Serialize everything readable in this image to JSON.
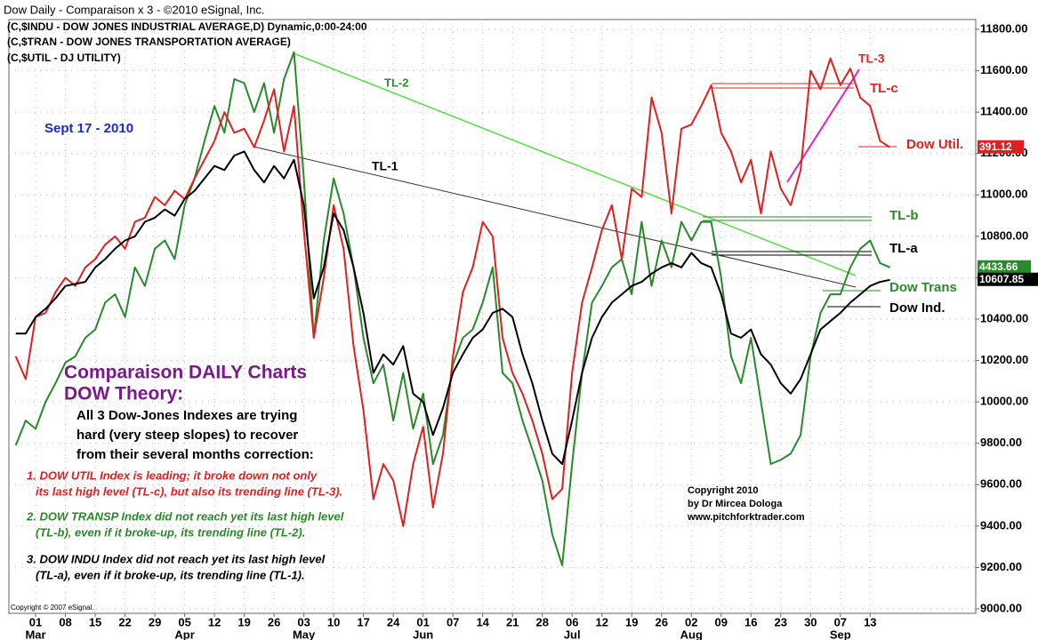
{
  "chart_data": {
    "type": "line",
    "title": "Dow Daily - Comparaison x 3 - ©2010 eSignal, Inc.",
    "header": [
      "(C,$INDU - DOW JONES INDUSTRIAL AVERAGE,D) Dynamic,0:00-24:00",
      "(C,$TRAN - DOW JONES TRANSPORTATION AVERAGE)",
      "(C,$UTIL - DJ UTILITY)"
    ],
    "categories": [
      null,
      null,
      "01",
      null,
      null,
      "08",
      null,
      null,
      "15",
      null,
      null,
      "22",
      null,
      null,
      "29",
      null,
      null,
      "05",
      null,
      null,
      "12",
      null,
      null,
      "19",
      null,
      null,
      "26",
      null,
      null,
      "03",
      null,
      null,
      "10",
      null,
      null,
      "17",
      null,
      null,
      "24",
      null,
      null,
      "01",
      null,
      null,
      "07",
      null,
      null,
      "14",
      null,
      null,
      "21",
      null,
      null,
      "28",
      null,
      null,
      "06",
      null,
      null,
      "12",
      null,
      null,
      "19",
      null,
      null,
      "26",
      null,
      null,
      "02",
      null,
      null,
      "09",
      null,
      null,
      "16",
      null,
      null,
      "23",
      null,
      null,
      "30",
      null,
      null,
      "07",
      null,
      null,
      "13",
      null,
      null
    ],
    "months": [
      null,
      null,
      "Mar",
      null,
      null,
      null,
      null,
      null,
      null,
      null,
      null,
      null,
      null,
      null,
      null,
      null,
      null,
      "Apr",
      null,
      null,
      null,
      null,
      null,
      null,
      null,
      null,
      null,
      null,
      null,
      "May",
      null,
      null,
      null,
      null,
      null,
      null,
      null,
      null,
      null,
      null,
      null,
      "Jun",
      null,
      null,
      null,
      null,
      null,
      null,
      null,
      null,
      null,
      null,
      null,
      null,
      null,
      null,
      "Jul",
      null,
      null,
      null,
      null,
      null,
      null,
      null,
      null,
      null,
      null,
      null,
      "Aug",
      null,
      null,
      null,
      null,
      null,
      null,
      null,
      null,
      null,
      null,
      null,
      null,
      null,
      null,
      "Sep",
      null,
      null,
      null,
      null,
      null
    ],
    "ylim": [
      9000,
      11800
    ],
    "yticks": [
      {
        "value": 9000,
        "label": "9000.00"
      },
      {
        "value": 9200,
        "label": "9200.00"
      },
      {
        "value": 9400,
        "label": "9400.00"
      },
      {
        "value": 9600,
        "label": "9600.00"
      },
      {
        "value": 9800,
        "label": "9800.00"
      },
      {
        "value": 10000,
        "label": "10000.00"
      },
      {
        "value": 10200,
        "label": "10200.00"
      },
      {
        "value": 10400,
        "label": "10400.00"
      },
      {
        "value": 10600,
        "label": "10600.00"
      },
      {
        "value": 10800,
        "label": "10800.00"
      },
      {
        "value": 11000,
        "label": "11000.00"
      },
      {
        "value": 11200,
        "label": "11200.00"
      },
      {
        "value": 11400,
        "label": "11400.00"
      },
      {
        "value": 11600,
        "label": "11600.00"
      },
      {
        "value": 11800,
        "label": "11800.00"
      }
    ],
    "grid": true,
    "series": [
      {
        "name": "Dow Trans",
        "color": "#2a8a2a",
        "last_label": "4433.66",
        "values": [
          9790,
          9910,
          9870,
          10000,
          10090,
          10190,
          10220,
          10310,
          10350,
          10480,
          10520,
          10410,
          10650,
          10560,
          10740,
          10780,
          10690,
          10950,
          11080,
          11260,
          11430,
          11300,
          11560,
          11540,
          11400,
          11540,
          11300,
          11560,
          11690,
          11080,
          10310,
          10780,
          11080,
          10910,
          10650,
          10310,
          10090,
          10180,
          9910,
          10140,
          9870,
          10040,
          9700,
          9840,
          10180,
          10310,
          10350,
          10480,
          10650,
          10140,
          10090,
          9910,
          9770,
          9620,
          9360,
          9210,
          9700,
          10140,
          10480,
          10560,
          10650,
          10690,
          10520,
          10870,
          10560,
          10780,
          10650,
          10870,
          10780,
          10870,
          10870,
          10600,
          10220,
          10090,
          10310,
          10000,
          9700,
          9720,
          9750,
          9840,
          10220,
          10430,
          10520,
          10520,
          10650,
          10740,
          10780,
          10670,
          10650
        ]
      },
      {
        "name": "Dow Util.",
        "color": "#e02020",
        "last_label": "391.12",
        "values": [
          10220,
          10110,
          10410,
          10430,
          10530,
          10600,
          10560,
          10650,
          10690,
          10760,
          10800,
          10740,
          10870,
          10890,
          10990,
          10950,
          11020,
          10980,
          11080,
          11170,
          11260,
          11400,
          11300,
          11320,
          11230,
          11360,
          11510,
          11210,
          11430,
          10830,
          10310,
          10600,
          10950,
          10740,
          10270,
          9960,
          9530,
          9700,
          9620,
          9400,
          9700,
          9880,
          9490,
          9750,
          10220,
          10530,
          10650,
          10870,
          10800,
          10310,
          10140,
          10040,
          9910,
          9750,
          9530,
          9580,
          10140,
          10480,
          10650,
          10830,
          10950,
          10690,
          11030,
          10990,
          11470,
          11300,
          10910,
          11320,
          11340,
          11430,
          11530,
          11300,
          11210,
          11060,
          11170,
          10910,
          11210,
          11030,
          10950,
          11120,
          11600,
          11510,
          11660,
          11530,
          11610,
          11470,
          11430,
          11260,
          11230
        ]
      },
      {
        "name": "Dow Ind.",
        "color": "#000000",
        "last_label": "10607.85",
        "values": [
          10330,
          10330,
          10410,
          10450,
          10500,
          10560,
          10570,
          10580,
          10650,
          10690,
          10740,
          10780,
          10800,
          10870,
          10890,
          10930,
          10900,
          10980,
          11020,
          11080,
          11140,
          11120,
          11190,
          11210,
          11120,
          11060,
          11140,
          11080,
          11170,
          10950,
          10500,
          10650,
          10910,
          10830,
          10650,
          10430,
          10140,
          10230,
          10180,
          10270,
          10040,
          10000,
          9840,
          9970,
          10140,
          10230,
          10310,
          10350,
          10430,
          10450,
          10410,
          10230,
          10090,
          9910,
          9750,
          9700,
          9910,
          10140,
          10310,
          10410,
          10480,
          10520,
          10560,
          10580,
          10620,
          10650,
          10670,
          10650,
          10720,
          10670,
          10650,
          10520,
          10330,
          10310,
          10350,
          10230,
          10180,
          10090,
          10040,
          10110,
          10230,
          10350,
          10390,
          10430,
          10480,
          10520,
          10560,
          10580,
          10590
        ]
      }
    ],
    "trend_labels": [
      "TL-1",
      "TL-2",
      "TL-3",
      "TL-a",
      "TL-b",
      "TL-c"
    ],
    "date_label": "Sept 17 - 2010",
    "heading": [
      "Comparaison DAILY Charts",
      "DOW Theory:"
    ],
    "summary": [
      "All 3 Dow-Jones Indexes are trying",
      "hard (very steep slopes) to recover",
      "from their several months correction:"
    ],
    "notes": [
      {
        "color": "#e02020",
        "lines": [
          "1.  DOW UTIL Index is leading; it broke down not only",
          "its last high level (TL-c), but also its trending line (TL-3)."
        ]
      },
      {
        "color": "#2a8a2a",
        "lines": [
          "2.  DOW TRANSP Index did not reach yet its last high level",
          "(TL-b), even if it broke-up, its trending line (TL-2)."
        ]
      },
      {
        "color": "#000000",
        "lines": [
          "3.  DOW INDU Index did not reach yet its last high level",
          "(TL-a), even if it broke-up, its trending line (TL-1)."
        ]
      }
    ],
    "copyright": [
      "Copyright 2010",
      "by Dr Mircea Dologa",
      "www.pitchforktrader.com"
    ],
    "footer": "Copyright © 2007 eSignal."
  }
}
